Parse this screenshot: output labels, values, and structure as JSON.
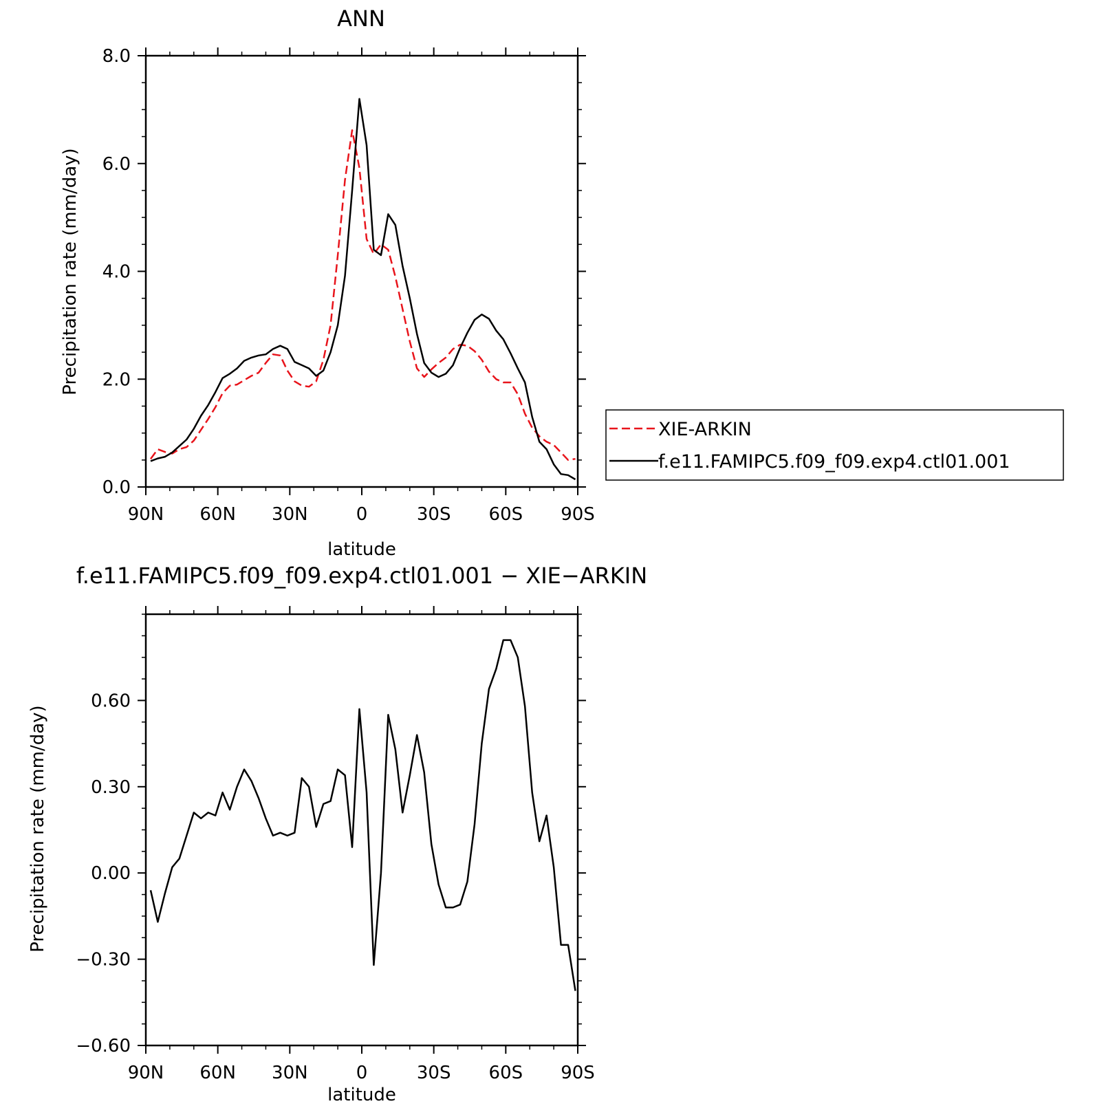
{
  "chart_data": [
    {
      "type": "line",
      "title": "ANN",
      "xlabel": "latitude",
      "ylabel": "Precipitation rate (mm/day)",
      "x_ticks": [
        "90N",
        "60N",
        "30N",
        "0",
        "30S",
        "60S",
        "90S"
      ],
      "y_ticks": [
        "0.0",
        "2.0",
        "4.0",
        "6.0",
        "8.0"
      ],
      "xlim": [
        90,
        -90
      ],
      "ylim": [
        0,
        8
      ],
      "grid": false,
      "legend": "right",
      "x": [
        88,
        85,
        82,
        79,
        76,
        73,
        70,
        67,
        64,
        61,
        58,
        55,
        52,
        49,
        46,
        43,
        40,
        37,
        34,
        31,
        28,
        25,
        22,
        19,
        16,
        13,
        10,
        7,
        4,
        1,
        -2,
        -5,
        -8,
        -11,
        -14,
        -17,
        -20,
        -23,
        -26,
        -29,
        -32,
        -35,
        -38,
        -41,
        -44,
        -47,
        -50,
        -53,
        -56,
        -59,
        -62,
        -65,
        -68,
        -71,
        -74,
        -77,
        -80,
        -83,
        -86,
        -89
      ],
      "series": [
        {
          "name": "XIE-ARKIN",
          "color": "#e8141b",
          "dash": "dashed",
          "values": [
            0.52,
            0.7,
            0.65,
            0.62,
            0.7,
            0.74,
            0.86,
            1.06,
            1.26,
            1.48,
            1.74,
            1.88,
            1.9,
            1.98,
            2.06,
            2.12,
            2.3,
            2.46,
            2.44,
            2.16,
            1.96,
            1.88,
            1.86,
            1.96,
            2.36,
            3.0,
            4.3,
            5.7,
            6.62,
            5.92,
            4.6,
            4.32,
            4.5,
            4.4,
            3.9,
            3.3,
            2.7,
            2.2,
            2.04,
            2.18,
            2.3,
            2.4,
            2.56,
            2.64,
            2.62,
            2.52,
            2.36,
            2.14,
            2.0,
            1.94,
            1.94,
            1.72,
            1.36,
            1.1,
            0.94,
            0.84,
            0.78,
            0.64,
            0.5,
            0.52
          ]
        },
        {
          "name": "f.e11.FAMIPC5.f09_f09.exp4.ctl01.001",
          "color": "#000000",
          "dash": "solid",
          "values": [
            0.48,
            0.53,
            0.56,
            0.64,
            0.76,
            0.88,
            1.08,
            1.32,
            1.52,
            1.76,
            2.02,
            2.1,
            2.2,
            2.34,
            2.4,
            2.44,
            2.46,
            2.56,
            2.62,
            2.56,
            2.32,
            2.26,
            2.2,
            2.06,
            2.16,
            2.5,
            3.0,
            3.92,
            5.5,
            7.2,
            6.34,
            4.4,
            4.3,
            5.06,
            4.86,
            4.1,
            3.5,
            2.84,
            2.3,
            2.12,
            2.04,
            2.1,
            2.26,
            2.58,
            2.86,
            3.1,
            3.2,
            3.12,
            2.9,
            2.74,
            2.48,
            2.2,
            1.94,
            1.3,
            0.84,
            0.7,
            0.42,
            0.24,
            0.22,
            0.14
          ]
        }
      ]
    },
    {
      "type": "line",
      "title": "f.e11.FAMIPC5.f09_f09.exp4.ctl01.001 − XIE−ARKIN",
      "xlabel": "latitude",
      "ylabel": "Precipitation rate (mm/day)",
      "x_ticks": [
        "90N",
        "60N",
        "30N",
        "0",
        "30S",
        "60S",
        "90S"
      ],
      "y_ticks": [
        "−0.60",
        "−0.30",
        "0.00",
        "0.30",
        "0.60"
      ],
      "xlim": [
        90,
        -90
      ],
      "ylim": [
        -0.6,
        0.9
      ],
      "grid": false,
      "x": [
        88,
        85,
        82,
        79,
        76,
        73,
        70,
        67,
        64,
        61,
        58,
        55,
        52,
        49,
        46,
        43,
        40,
        37,
        34,
        31,
        28,
        25,
        22,
        19,
        16,
        13,
        10,
        7,
        4,
        1,
        -2,
        -5,
        -8,
        -11,
        -14,
        -17,
        -20,
        -23,
        -26,
        -29,
        -32,
        -35,
        -38,
        -41,
        -44,
        -47,
        -50,
        -53,
        -56,
        -59,
        -62,
        -65,
        -68,
        -71,
        -74,
        -77,
        -80,
        -83,
        -86,
        -89
      ],
      "series": [
        {
          "color": "#000000",
          "dash": "solid",
          "values": [
            -0.06,
            -0.17,
            -0.07,
            0.02,
            0.05,
            0.13,
            0.21,
            0.19,
            0.21,
            0.2,
            0.28,
            0.22,
            0.3,
            0.36,
            0.32,
            0.26,
            0.19,
            0.13,
            0.14,
            0.13,
            0.14,
            0.33,
            0.3,
            0.16,
            0.24,
            0.25,
            0.36,
            0.34,
            0.09,
            0.57,
            0.28,
            -0.32,
            0.0,
            0.55,
            0.43,
            0.21,
            0.34,
            0.48,
            0.35,
            0.1,
            -0.04,
            -0.12,
            -0.12,
            -0.11,
            -0.03,
            0.17,
            0.45,
            0.64,
            0.71,
            0.81,
            0.81,
            0.75,
            0.58,
            0.28,
            0.11,
            0.2,
            0.02,
            -0.25,
            -0.25,
            -0.41
          ]
        }
      ]
    }
  ]
}
